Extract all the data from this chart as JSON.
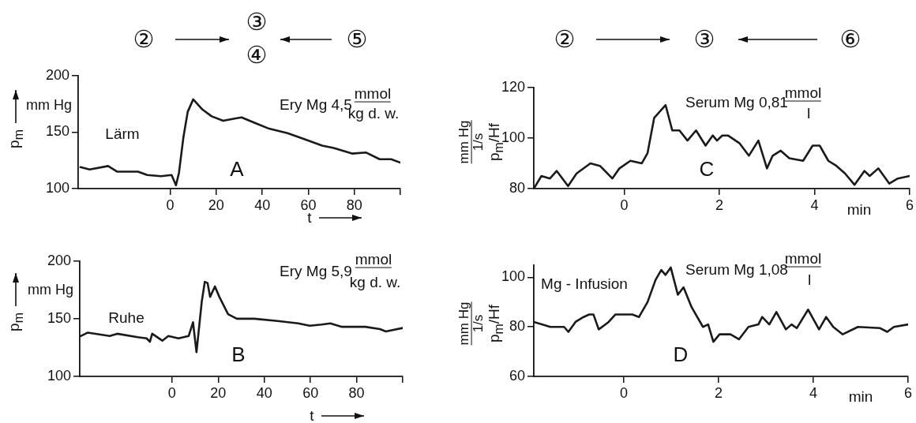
{
  "chart_data": [
    {
      "type": "line",
      "xlabel": "t",
      "ylabel": "p$_{m}$",
      "xlim": [
        -40,
        100
      ],
      "ylim": [
        100,
        200
      ],
      "xticks": [
        0,
        20,
        40,
        60,
        80,
        {
          "value": 100,
          "label": null
        }
      ],
      "yticks": [
        100,
        150,
        200
      ],
      "annotations": [
        "②",
        "③",
        "④",
        "⑤",
        "Ery Mg 4,5",
        "mmol",
        "kg d. w.",
        "Lärm",
        "A",
        "mm Hg"
      ],
      "x": [
        -39,
        -35,
        -27,
        -23,
        -14,
        -10,
        -4,
        0.6,
        2.5,
        3.8,
        5.7,
        7.6,
        10,
        14,
        18,
        23,
        28,
        31,
        37,
        43,
        51,
        58,
        66,
        71,
        79,
        85,
        91,
        96,
        100
      ],
      "series": [
        {
          "color": "#1a1a1a",
          "values": [
            119,
            117,
            120,
            115,
            115,
            112,
            111,
            112,
            103,
            114,
            145,
            168,
            179,
            170,
            164,
            160,
            162,
            163,
            158,
            153,
            149,
            144,
            138,
            136,
            131,
            132,
            126,
            126,
            123
          ]
        }
      ]
    },
    {
      "type": "line",
      "xlabel": "t",
      "ylabel": "p$_{m}$",
      "xlim": [
        -40,
        100
      ],
      "ylim": [
        100,
        200
      ],
      "xticks": [
        0,
        20,
        40,
        60,
        80,
        {
          "value": 100,
          "label": null
        }
      ],
      "yticks": [
        100,
        150,
        200
      ],
      "annotations": [
        "Ery Mg 5,9",
        "mmol",
        "kg d. w.",
        "Ruhe",
        "B",
        "mm Hg"
      ],
      "x": [
        -39.6,
        -36.5,
        -27,
        -23.8,
        -14.9,
        -11,
        -9.6,
        -8.6,
        -4.2,
        -1.6,
        2.8,
        7.2,
        9.1,
        10.6,
        12.9,
        14.2,
        15.4,
        16.5,
        18.6,
        20.5,
        24.3,
        28.1,
        35.7,
        45.8,
        54.7,
        59.7,
        64.8,
        68.6,
        73.7,
        83.8,
        90.1,
        92.7,
        100
      ],
      "series": [
        {
          "color": "#1a1a1a",
          "values": [
            135,
            138,
            135,
            137,
            134,
            133,
            130,
            137,
            131,
            135,
            133,
            135,
            147,
            121,
            165,
            182,
            181,
            169,
            178,
            169,
            154,
            150,
            150,
            148,
            146,
            144,
            145,
            146,
            143,
            143,
            141,
            139,
            142
          ]
        }
      ]
    },
    {
      "type": "line",
      "xlabel": "min",
      "ylabel": "p$_{m}$/Hf",
      "xlim": [
        -1.9,
        6
      ],
      "ylim": [
        80,
        120
      ],
      "xticks": [
        0,
        2,
        4,
        6
      ],
      "yticks": [
        80,
        100,
        120
      ],
      "annotations": [
        "②",
        "③",
        "⑥",
        "Serum Mg 0,81",
        "mmol",
        "l",
        "C",
        "mm Hg",
        "1/s"
      ],
      "x": [
        -1.9,
        -1.74,
        -1.56,
        -1.42,
        -1.18,
        -1.0,
        -0.71,
        -0.51,
        -0.25,
        -0.1,
        0.13,
        0.37,
        0.49,
        0.63,
        0.87,
        1.01,
        1.16,
        1.33,
        1.51,
        1.71,
        1.86,
        1.95,
        2.06,
        2.18,
        2.42,
        2.62,
        2.82,
        3.0,
        3.12,
        3.29,
        3.47,
        3.76,
        3.96,
        4.11,
        4.29,
        4.46,
        4.64,
        4.84,
        5.05,
        5.16,
        5.34,
        5.57,
        5.75,
        6.0
      ],
      "series": [
        {
          "color": "#1a1a1a",
          "values": [
            80,
            85,
            84,
            87,
            81,
            86,
            90,
            89,
            84,
            88,
            91,
            90,
            94,
            108,
            113,
            103,
            103,
            99,
            103,
            97,
            101,
            99,
            101,
            101,
            98,
            93,
            99,
            88,
            93,
            95,
            92,
            91,
            97,
            97,
            91,
            89,
            86,
            81.5,
            87,
            85,
            88,
            82,
            84,
            85
          ]
        }
      ]
    },
    {
      "type": "line",
      "xlabel": "min",
      "ylabel": "p$_{m}$/Hf",
      "xlim": [
        -1.9,
        6
      ],
      "ylim": [
        60,
        105
      ],
      "xticks": [
        0,
        2,
        4,
        6
      ],
      "yticks": [
        60,
        80,
        100
      ],
      "annotations": [
        "Serum Mg 1,08",
        "mmol",
        "l",
        "Mg - Infusion",
        "D",
        "mm Hg",
        "1/s"
      ],
      "x": [
        -1.9,
        -1.55,
        -1.26,
        -1.17,
        -1.02,
        -0.85,
        -0.73,
        -0.64,
        -0.53,
        -0.32,
        -0.18,
        -0.03,
        0.18,
        0.32,
        0.5,
        0.67,
        0.79,
        0.88,
        0.99,
        1.14,
        1.26,
        1.43,
        1.67,
        1.78,
        1.89,
        2.02,
        2.25,
        2.43,
        2.63,
        2.84,
        2.92,
        3.07,
        3.22,
        3.42,
        3.54,
        3.65,
        3.89,
        4.12,
        4.27,
        4.42,
        4.62,
        4.94,
        5.41,
        5.56,
        5.7,
        6.0
      ],
      "series": [
        {
          "color": "#1a1a1a",
          "values": [
            82,
            80,
            80,
            78,
            82,
            84,
            85,
            85,
            79,
            82,
            85,
            85,
            85,
            84,
            90,
            99,
            103,
            101,
            104,
            93,
            96,
            88,
            80,
            81,
            74,
            77,
            77,
            75,
            80,
            81,
            84,
            81,
            86,
            79,
            81,
            79.5,
            87,
            79,
            84,
            80,
            77,
            80,
            79.5,
            78,
            80,
            81
          ]
        }
      ]
    }
  ]
}
